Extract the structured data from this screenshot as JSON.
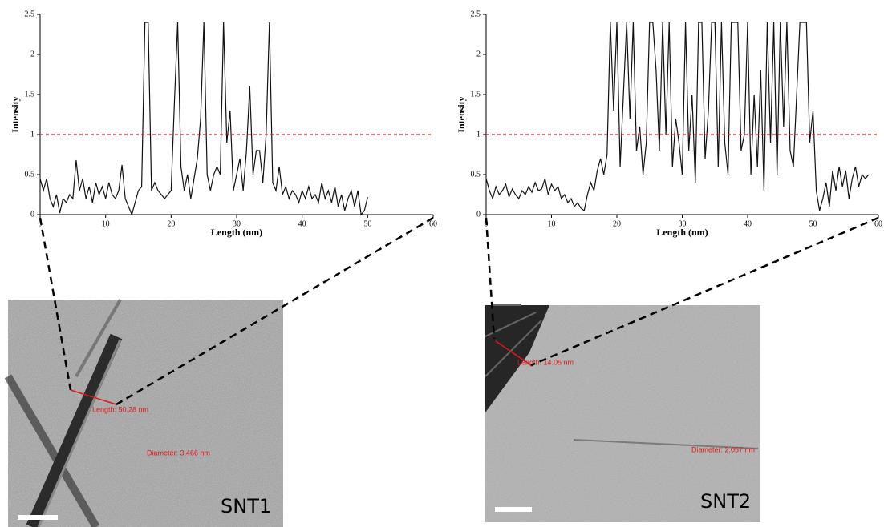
{
  "chart_data": [
    {
      "type": "line",
      "xlabel": "Length (nm)",
      "ylabel": "Intensity",
      "xlim": [
        0,
        60
      ],
      "ylim": [
        0,
        2.5
      ],
      "xticks": [
        0,
        10,
        20,
        30,
        40,
        50,
        60
      ],
      "yticks": [
        0,
        0.5,
        1,
        1.5,
        2,
        2.5
      ],
      "reference_line": {
        "value": 1,
        "color": "#d62020"
      },
      "x": [
        0,
        0.5,
        1,
        1.5,
        2,
        2.5,
        3,
        3.5,
        4,
        4.5,
        5,
        5.5,
        6,
        6.5,
        7,
        7.5,
        8,
        8.5,
        9,
        9.5,
        10,
        10.5,
        11,
        11.5,
        12,
        12.5,
        13,
        13.5,
        14,
        14.5,
        15,
        15.5,
        16,
        16.5,
        17,
        17.5,
        18,
        18.5,
        19,
        19.5,
        20,
        20.5,
        21,
        21.5,
        22,
        22.5,
        23,
        23.5,
        24,
        24.5,
        25,
        25.5,
        26,
        26.5,
        27,
        27.5,
        28,
        28.5,
        29,
        29.5,
        30,
        30.5,
        31,
        31.5,
        32,
        32.5,
        33,
        33.5,
        34,
        34.5,
        35,
        35.5,
        36,
        36.5,
        37,
        37.5,
        38,
        38.5,
        39,
        39.5,
        40,
        40.5,
        41,
        41.5,
        42,
        42.5,
        43,
        43.5,
        44,
        44.5,
        45,
        45.5,
        46,
        46.5,
        47,
        47.5,
        48,
        48.5,
        49,
        49.5,
        50
      ],
      "series": [
        {
          "color": "#111111",
          "values": [
            0.45,
            0.3,
            0.45,
            0.2,
            0.1,
            0.25,
            0.02,
            0.2,
            0.15,
            0.25,
            0.2,
            0.68,
            0.3,
            0.45,
            0.2,
            0.35,
            0.15,
            0.4,
            0.25,
            0.35,
            0.2,
            0.4,
            0.25,
            0.2,
            0.3,
            0.62,
            0.2,
            0.1,
            0.0,
            0.15,
            0.3,
            0.35,
            2.4,
            2.4,
            0.3,
            0.4,
            0.3,
            0.25,
            0.2,
            0.25,
            0.3,
            1.4,
            2.4,
            0.6,
            0.3,
            0.5,
            0.2,
            0.45,
            0.7,
            1.2,
            2.4,
            0.5,
            0.3,
            0.5,
            0.6,
            0.5,
            2.4,
            0.9,
            1.3,
            0.3,
            0.5,
            0.7,
            0.3,
            0.8,
            1.6,
            0.5,
            0.8,
            0.8,
            0.4,
            1.0,
            2.4,
            0.4,
            0.3,
            0.6,
            0.25,
            0.35,
            0.2,
            0.3,
            0.25,
            0.15,
            0.3,
            0.2,
            0.35,
            0.2,
            0.25,
            0.15,
            0.4,
            0.2,
            0.3,
            0.15,
            0.35,
            0.1,
            0.25,
            0.05,
            0.2,
            0.3,
            0.1,
            0.3,
            0.0,
            0.05,
            0.22
          ]
        }
      ]
    },
    {
      "type": "line",
      "xlabel": "Length (nm)",
      "ylabel": "Intensity",
      "xlim": [
        0,
        60
      ],
      "ylim": [
        0,
        2.5
      ],
      "xticks": [
        0,
        10,
        20,
        30,
        40,
        50,
        60
      ],
      "yticks": [
        0,
        0.5,
        1,
        1.5,
        2,
        2.5
      ],
      "reference_line": {
        "value": 1,
        "color": "#d62020"
      },
      "x": [
        0,
        0.5,
        1,
        1.5,
        2,
        2.5,
        3,
        3.5,
        4,
        4.5,
        5,
        5.5,
        6,
        6.5,
        7,
        7.5,
        8,
        8.5,
        9,
        9.5,
        10,
        10.5,
        11,
        11.5,
        12,
        12.5,
        13,
        13.5,
        14,
        14.5,
        15,
        15.5,
        16,
        16.5,
        17,
        17.5,
        18,
        18.5,
        19,
        19.5,
        20,
        20.5,
        21,
        21.5,
        22,
        22.5,
        23,
        23.5,
        24,
        24.5,
        25,
        25.5,
        26,
        26.5,
        27,
        27.5,
        28,
        28.5,
        29,
        29.5,
        30,
        30.5,
        31,
        31.5,
        32,
        32.5,
        33,
        33.5,
        34,
        34.5,
        35,
        35.5,
        36,
        36.5,
        37,
        37.5,
        38,
        38.5,
        39,
        39.5,
        40,
        40.5,
        41,
        41.5,
        42,
        42.5,
        43,
        43.5,
        44,
        44.5,
        45,
        45.5,
        46,
        46.5,
        47,
        47.5,
        48,
        48.5,
        49,
        49.5,
        50,
        50.5,
        51,
        51.5,
        52,
        52.5,
        53,
        53.5,
        54,
        54.5,
        55,
        55.5,
        56,
        56.5,
        57,
        57.5,
        58,
        58.5
      ],
      "series": [
        {
          "color": "#111111",
          "values": [
            0.45,
            0.3,
            0.2,
            0.35,
            0.25,
            0.3,
            0.38,
            0.22,
            0.32,
            0.25,
            0.2,
            0.3,
            0.25,
            0.35,
            0.28,
            0.4,
            0.3,
            0.32,
            0.45,
            0.25,
            0.38,
            0.3,
            0.35,
            0.2,
            0.25,
            0.15,
            0.2,
            0.1,
            0.15,
            0.08,
            0.05,
            0.25,
            0.4,
            0.3,
            0.55,
            0.7,
            0.5,
            0.75,
            2.4,
            1.3,
            2.4,
            0.6,
            1.5,
            2.4,
            1.2,
            2.4,
            0.8,
            1.1,
            0.5,
            0.9,
            2.4,
            2.4,
            1.8,
            0.8,
            2.4,
            1.0,
            2.4,
            0.6,
            1.2,
            0.9,
            0.5,
            2.4,
            0.8,
            1.5,
            0.4,
            2.4,
            2.4,
            0.7,
            1.3,
            2.4,
            2.4,
            0.6,
            2.4,
            0.9,
            0.5,
            2.4,
            2.4,
            2.4,
            0.8,
            1.0,
            2.4,
            0.5,
            1.5,
            0.6,
            1.8,
            0.3,
            2.4,
            0.9,
            2.4,
            0.5,
            2.4,
            1.1,
            2.4,
            0.8,
            0.6,
            1.5,
            2.4,
            2.4,
            2.4,
            0.9,
            1.3,
            0.3,
            0.05,
            0.2,
            0.4,
            0.1,
            0.55,
            0.3,
            0.6,
            0.35,
            0.55,
            0.2,
            0.45,
            0.6,
            0.35,
            0.5,
            0.45,
            0.5
          ]
        }
      ]
    }
  ],
  "images": [
    {
      "label": "SNT1",
      "length": "Length: 50.28 nm",
      "diameter": "Diameter: 3.466 nm"
    },
    {
      "label": "SNT2",
      "length": "Length: 14.05 nm",
      "diameter": "Diameter: 2.057 nm"
    }
  ]
}
